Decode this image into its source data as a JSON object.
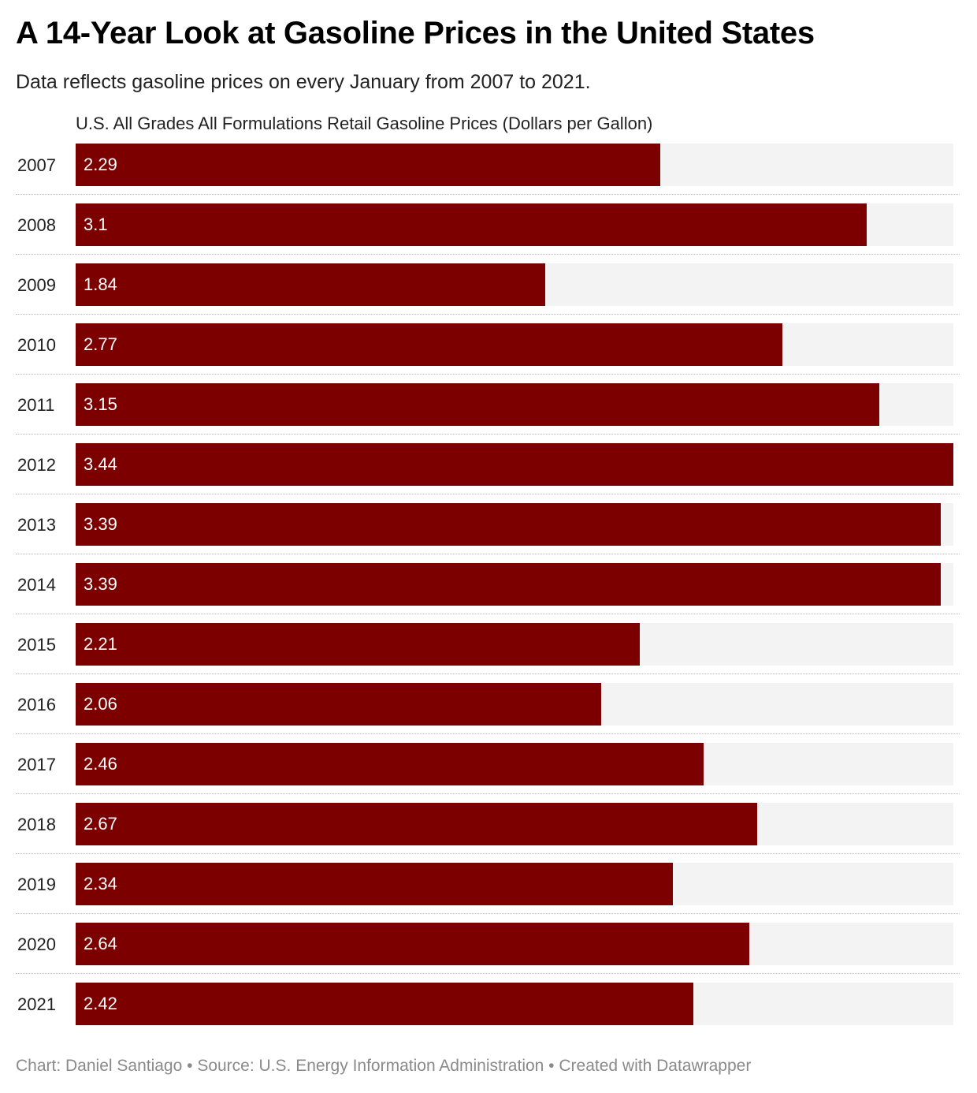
{
  "chart_data": {
    "type": "bar",
    "orientation": "horizontal",
    "title": "A 14-Year Look at Gasoline Prices in the United States",
    "subtitle": "Data reflects gasoline prices on every January from 2007 to 2021.",
    "column_header": "U.S. All Grades All Formulations Retail Gasoline Prices (Dollars per Gallon)",
    "categories": [
      "2007",
      "2008",
      "2009",
      "2010",
      "2011",
      "2012",
      "2013",
      "2014",
      "2015",
      "2016",
      "2017",
      "2018",
      "2019",
      "2020",
      "2021"
    ],
    "values": [
      2.29,
      3.1,
      1.84,
      2.77,
      3.15,
      3.44,
      3.39,
      3.39,
      2.21,
      2.06,
      2.46,
      2.67,
      2.34,
      2.64,
      2.42
    ],
    "value_labels": [
      "2.29",
      "3.1",
      "1.84",
      "2.77",
      "3.15",
      "3.44",
      "3.39",
      "3.39",
      "2.21",
      "2.06",
      "2.46",
      "2.67",
      "2.34",
      "2.64",
      "2.42"
    ],
    "xlim": [
      0,
      3.44
    ],
    "bar_color": "#7d0000",
    "track_color": "#f3f3f3",
    "footer": "Chart: Daniel Santiago • Source: U.S. Energy Information Administration • Created with Datawrapper"
  }
}
